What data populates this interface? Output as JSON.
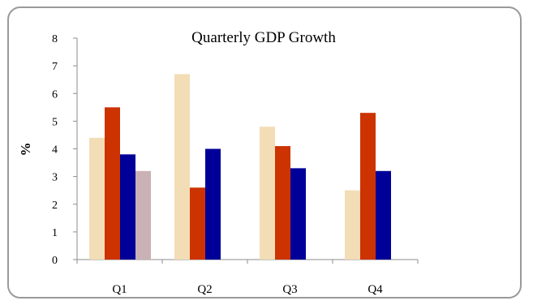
{
  "chart_data": {
    "type": "bar",
    "title": "Quarterly GDP Growth",
    "xlabel": "",
    "ylabel": "%",
    "ylim": [
      0,
      8
    ],
    "yticks": [
      "0",
      "1",
      "2",
      "3",
      "4",
      "5",
      "6",
      "7",
      "8"
    ],
    "categories": [
      "Q1",
      "Q2",
      "Q3",
      "Q4"
    ],
    "legend": "none",
    "grid": false,
    "series": [
      {
        "color": "#F2DDB6",
        "values": [
          4.4,
          6.7,
          4.8,
          2.5
        ]
      },
      {
        "color": "#CC3300",
        "values": [
          5.5,
          2.6,
          4.1,
          5.3
        ]
      },
      {
        "color": "#000099",
        "values": [
          3.8,
          4.0,
          3.3,
          3.2
        ]
      },
      {
        "color": "#C9B1B6",
        "values": [
          3.2,
          null,
          null,
          null
        ]
      }
    ]
  }
}
